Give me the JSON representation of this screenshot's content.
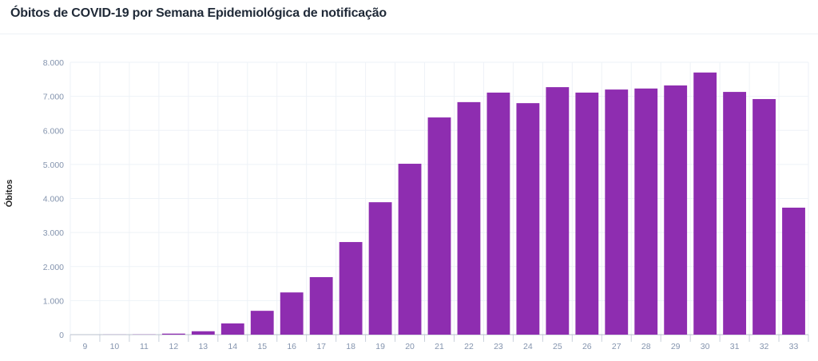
{
  "title": "Óbitos de COVID-19 por Semana Epidemiológica de notificação",
  "chart_data": {
    "type": "bar",
    "title": "Óbitos de COVID-19 por Semana Epidemiológica de notificação",
    "xlabel": "",
    "ylabel": "Óbitos",
    "ylim": [
      0,
      8000
    ],
    "yticks": [
      "0",
      "1.000",
      "2.000",
      "3.000",
      "4.000",
      "5.000",
      "6.000",
      "7.000",
      "8.000"
    ],
    "grid": true,
    "color": "#8e2db0",
    "categories": [
      "9",
      "10",
      "11",
      "12",
      "13",
      "14",
      "15",
      "16",
      "17",
      "18",
      "19",
      "20",
      "21",
      "22",
      "23",
      "24",
      "25",
      "26",
      "27",
      "28",
      "29",
      "30",
      "31",
      "32",
      "33"
    ],
    "values": [
      0,
      2,
      5,
      30,
      100,
      330,
      700,
      1240,
      1690,
      2720,
      3890,
      5020,
      6380,
      6830,
      7110,
      6800,
      7270,
      7110,
      7200,
      7230,
      7320,
      7700,
      7130,
      6920,
      3730
    ]
  }
}
